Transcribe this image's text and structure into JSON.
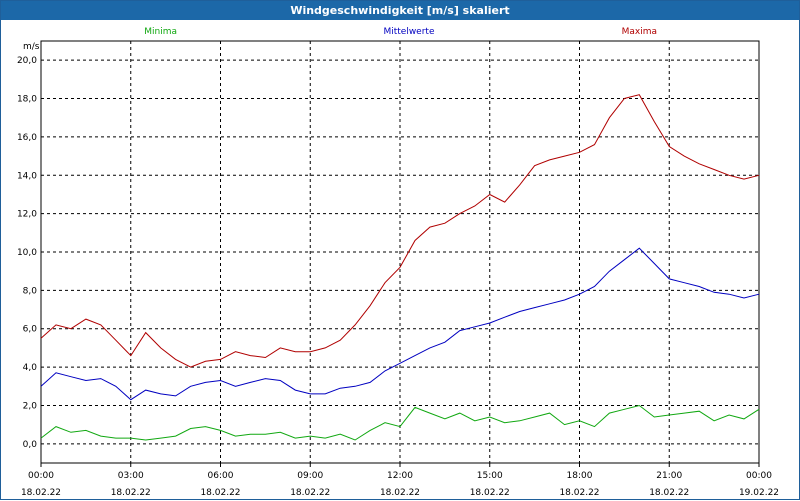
{
  "window": {
    "title": "Windgeschwindigkeit [m/s] skaliert"
  },
  "chart_data": {
    "type": "line",
    "title": "Windgeschwindigkeit [m/s] skaliert",
    "ylabel": "m/s",
    "ylim": [
      -1.0,
      21.0
    ],
    "yticks": [
      "0,0",
      "2,0",
      "4,0",
      "6,0",
      "8,0",
      "10,0",
      "12,0",
      "14,0",
      "16,0",
      "18,0",
      "20,0"
    ],
    "xticks": [
      {
        "time": "00:00",
        "date": "18.02.22"
      },
      {
        "time": "03:00",
        "date": "18.02.22"
      },
      {
        "time": "06:00",
        "date": "18.02.22"
      },
      {
        "time": "09:00",
        "date": "18.02.22"
      },
      {
        "time": "12:00",
        "date": "18.02.22"
      },
      {
        "time": "15:00",
        "date": "18.02.22"
      },
      {
        "time": "18:00",
        "date": "18.02.22"
      },
      {
        "time": "21:00",
        "date": "18.02.22"
      },
      {
        "time": "00:00",
        "date": "19.02.22"
      }
    ],
    "grid": true,
    "x_hours": [
      0,
      0.5,
      1,
      1.5,
      2,
      2.5,
      3,
      3.5,
      4,
      4.5,
      5,
      5.5,
      6,
      6.5,
      7,
      7.5,
      8,
      8.5,
      9,
      9.5,
      10,
      10.5,
      11,
      11.5,
      12,
      12.5,
      13,
      13.5,
      14,
      14.5,
      15,
      15.5,
      16,
      16.5,
      17,
      17.5,
      18,
      18.5,
      19,
      19.5,
      20,
      20.5,
      21,
      21.5,
      22,
      22.5,
      23,
      23.5,
      24
    ],
    "series": [
      {
        "name": "Minima",
        "color": "#11a811",
        "values": [
          0.3,
          0.9,
          0.6,
          0.7,
          0.4,
          0.3,
          0.3,
          0.2,
          0.3,
          0.4,
          0.8,
          0.9,
          0.7,
          0.4,
          0.5,
          0.5,
          0.6,
          0.3,
          0.4,
          0.3,
          0.5,
          0.2,
          0.7,
          1.1,
          0.9,
          1.9,
          1.6,
          1.3,
          1.6,
          1.2,
          1.4,
          1.1,
          1.2,
          1.4,
          1.6,
          1.0,
          1.2,
          0.9,
          1.6,
          1.8,
          2.0,
          1.4,
          1.5,
          1.6,
          1.7,
          1.2,
          1.5,
          1.3,
          1.8
        ]
      },
      {
        "name": "Mittelwerte",
        "color": "#0000c0",
        "values": [
          3.0,
          3.7,
          3.5,
          3.3,
          3.4,
          3.0,
          2.3,
          2.8,
          2.6,
          2.5,
          3.0,
          3.2,
          3.3,
          3.0,
          3.2,
          3.4,
          3.3,
          2.8,
          2.6,
          2.6,
          2.9,
          3.0,
          3.2,
          3.8,
          4.2,
          4.6,
          5.0,
          5.3,
          5.9,
          6.1,
          6.3,
          6.6,
          6.9,
          7.1,
          7.3,
          7.5,
          7.8,
          8.2,
          9.0,
          9.6,
          10.2,
          9.4,
          8.6,
          8.4,
          8.2,
          7.9,
          7.8,
          7.6,
          7.8
        ]
      },
      {
        "name": "Maxima",
        "color": "#b00000",
        "values": [
          5.5,
          6.2,
          6.0,
          6.5,
          6.2,
          5.4,
          4.6,
          5.8,
          5.0,
          4.4,
          4.0,
          4.3,
          4.4,
          4.8,
          4.6,
          4.5,
          5.0,
          4.8,
          4.8,
          5.0,
          5.4,
          6.2,
          7.2,
          8.4,
          9.2,
          10.6,
          11.3,
          11.5,
          12.0,
          12.4,
          13.0,
          12.6,
          13.5,
          14.5,
          14.8,
          15.0,
          15.2,
          15.6,
          17.0,
          18.0,
          18.2,
          16.8,
          15.5,
          15.0,
          14.6,
          14.3,
          14.0,
          13.8,
          14.0
        ]
      }
    ]
  }
}
